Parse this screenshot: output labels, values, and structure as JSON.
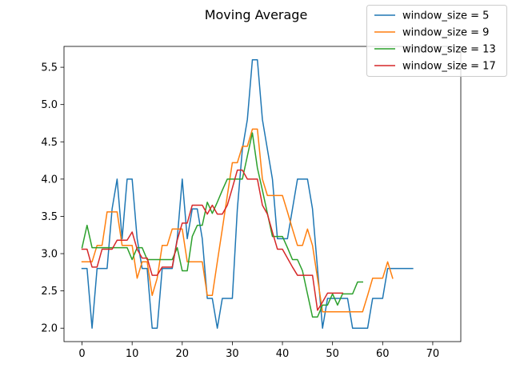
{
  "chart_data": {
    "type": "line",
    "title": "Moving Average",
    "xlabel": "",
    "ylabel": "",
    "xlim": [
      -3.6,
      75.6
    ],
    "ylim": [
      1.82,
      5.78
    ],
    "xticks": [
      0,
      10,
      20,
      30,
      40,
      50,
      60,
      70
    ],
    "yticks": [
      2.0,
      2.5,
      3.0,
      3.5,
      4.0,
      4.5,
      5.0,
      5.5
    ],
    "ytick_labels": [
      "2.0",
      "2.5",
      "3.0",
      "3.5",
      "4.0",
      "4.5",
      "5.0",
      "5.5"
    ],
    "grid": false,
    "legend_position": "top-right",
    "series": [
      {
        "name": "window_size = 5",
        "color": "#1f77b4",
        "values": [
          2.8,
          2.8,
          2.0,
          2.8,
          2.8,
          2.8,
          3.6,
          4.0,
          3.2,
          4.0,
          4.0,
          3.2,
          2.8,
          2.8,
          2.0,
          2.0,
          2.8,
          2.8,
          2.8,
          3.2,
          4.0,
          3.2,
          3.6,
          3.6,
          3.2,
          2.4,
          2.4,
          2.0,
          2.4,
          2.4,
          2.4,
          3.6,
          4.4,
          4.8,
          5.6,
          5.6,
          4.8,
          4.4,
          4.0,
          3.2,
          3.2,
          3.2,
          3.6,
          4.0,
          4.0,
          4.0,
          3.6,
          2.8,
          2.0,
          2.4,
          2.4,
          2.4,
          2.4,
          2.4,
          2.0,
          2.0,
          2.0,
          2.0,
          2.4,
          2.4,
          2.4,
          2.8,
          2.8,
          2.8,
          2.8,
          2.8,
          2.8
        ]
      },
      {
        "name": "window_size = 9",
        "color": "#ff7f0e",
        "values": [
          2.89,
          2.89,
          2.89,
          3.11,
          3.11,
          3.56,
          3.56,
          3.56,
          3.11,
          3.11,
          3.11,
          2.67,
          2.89,
          2.89,
          2.44,
          2.67,
          3.11,
          3.11,
          3.33,
          3.33,
          3.33,
          2.89,
          2.89,
          2.89,
          2.89,
          2.44,
          2.44,
          2.89,
          3.33,
          3.78,
          4.22,
          4.22,
          4.44,
          4.44,
          4.67,
          4.67,
          4.0,
          3.78,
          3.78,
          3.78,
          3.78,
          3.56,
          3.33,
          3.11,
          3.11,
          3.33,
          3.11,
          2.67,
          2.22,
          2.22,
          2.22,
          2.22,
          2.22,
          2.22,
          2.22,
          2.22,
          2.22,
          2.44,
          2.67,
          2.67,
          2.67,
          2.89,
          2.67
        ]
      },
      {
        "name": "window_size = 13",
        "color": "#2ca02c",
        "values": [
          3.08,
          3.38,
          3.08,
          3.08,
          3.08,
          3.08,
          3.08,
          3.08,
          3.08,
          3.08,
          2.92,
          3.08,
          3.08,
          2.92,
          2.92,
          2.92,
          2.92,
          2.92,
          2.92,
          3.08,
          2.77,
          2.77,
          3.23,
          3.38,
          3.38,
          3.69,
          3.54,
          3.69,
          3.85,
          4.0,
          4.0,
          4.0,
          4.0,
          4.31,
          4.62,
          4.15,
          3.85,
          3.54,
          3.23,
          3.23,
          3.23,
          3.08,
          2.92,
          2.92,
          2.77,
          2.46,
          2.15,
          2.15,
          2.31,
          2.31,
          2.46,
          2.31,
          2.46,
          2.46,
          2.46,
          2.62,
          2.62
        ]
      },
      {
        "name": "window_size = 17",
        "color": "#d62728",
        "values": [
          3.06,
          3.06,
          2.82,
          2.82,
          3.06,
          3.06,
          3.06,
          3.18,
          3.18,
          3.18,
          3.29,
          3.06,
          2.94,
          2.94,
          2.71,
          2.71,
          2.82,
          2.82,
          2.82,
          3.18,
          3.41,
          3.41,
          3.65,
          3.65,
          3.65,
          3.53,
          3.65,
          3.53,
          3.53,
          3.65,
          3.88,
          4.12,
          4.12,
          4.0,
          4.0,
          4.0,
          3.65,
          3.53,
          3.29,
          3.06,
          3.06,
          2.94,
          2.82,
          2.71,
          2.71,
          2.71,
          2.71,
          2.24,
          2.35,
          2.47,
          2.47,
          2.47,
          2.47
        ]
      }
    ]
  }
}
